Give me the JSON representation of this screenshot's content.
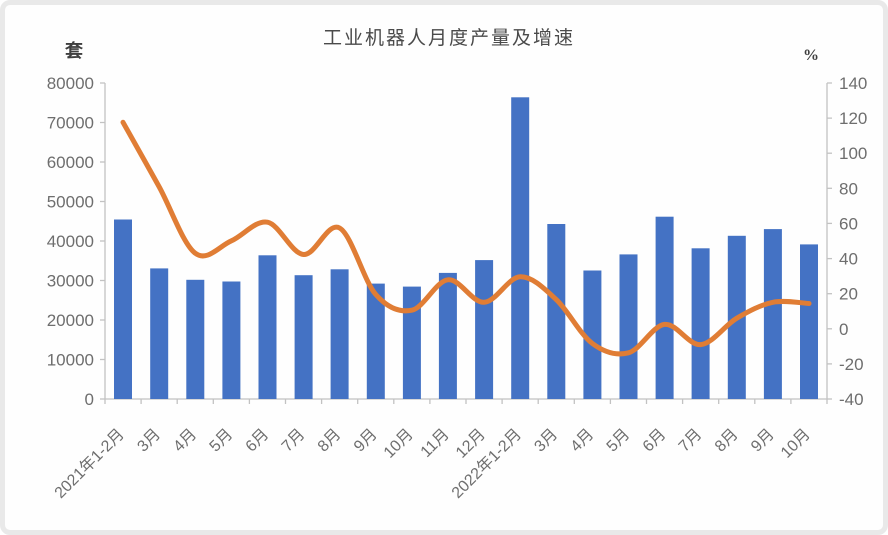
{
  "title": "工业机器人月度产量及增速",
  "chart_data": {
    "type": "combo-bar-line",
    "title": "工业机器人月度产量及增速",
    "categories": [
      "2021年1-2月",
      "3月",
      "4月",
      "5月",
      "6月",
      "7月",
      "8月",
      "9月",
      "10月",
      "11月",
      "12月",
      "2022年1-2月",
      "3月",
      "4月",
      "5月",
      "6月",
      "7月",
      "8月",
      "9月",
      "10月"
    ],
    "series": [
      {
        "name": "月度产量",
        "type": "bar",
        "axis": "left",
        "color": "#4472C4",
        "values": [
          45433,
          33073,
          30178,
          29743,
          36383,
          31342,
          32828,
          29212,
          28460,
          31915,
          35175,
          76381,
          44306,
          32535,
          36616,
          46144,
          38142,
          41316,
          43009,
          39143
        ]
      },
      {
        "name": "增速",
        "type": "line",
        "axis": "right",
        "color": "#E07D35",
        "values": [
          117.6,
          80.8,
          43.0,
          50.1,
          60.7,
          42.3,
          57.4,
          19.5,
          10.6,
          27.9,
          15.1,
          29.6,
          16.6,
          -8.4,
          -13.7,
          2.5,
          -9.0,
          6.0,
          15.1,
          14.4
        ]
      }
    ],
    "left_axis": {
      "label": "套",
      "min": 0,
      "max": 80000,
      "step": 10000,
      "ticks": [
        0,
        10000,
        20000,
        30000,
        40000,
        50000,
        60000,
        70000,
        80000
      ]
    },
    "right_axis": {
      "label": "%",
      "min": -40,
      "max": 140,
      "step": 20,
      "ticks": [
        -40,
        -20,
        0,
        20,
        40,
        60,
        80,
        100,
        120,
        140
      ]
    },
    "grid": false,
    "legend": "none",
    "axis_line_color": "#c2c2c2",
    "tick_label_color": "#6e6e6e"
  }
}
